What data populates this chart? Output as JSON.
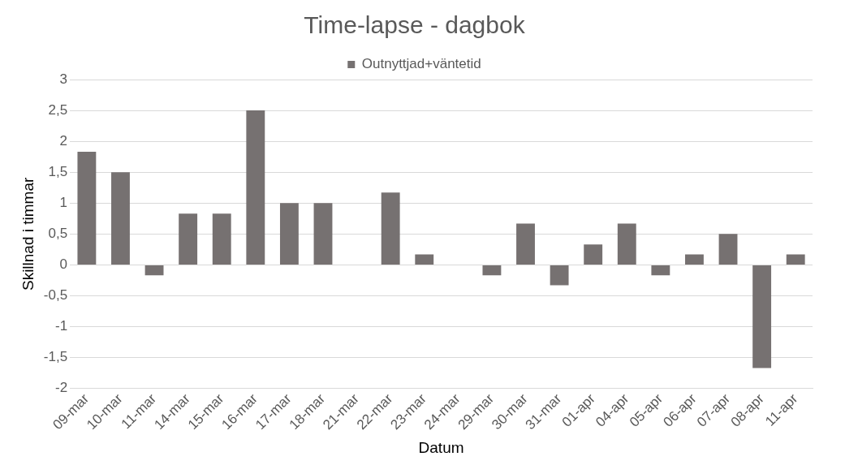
{
  "chart_data": {
    "type": "bar",
    "title": "Time-lapse - dagbok",
    "xlabel": "Datum",
    "ylabel": "Skillnad i timmar",
    "categories": [
      "09-mar",
      "10-mar",
      "11-mar",
      "14-mar",
      "15-mar",
      "16-mar",
      "17-mar",
      "18-mar",
      "21-mar",
      "22-mar",
      "23-mar",
      "24-mar",
      "29-mar",
      "30-mar",
      "31-mar",
      "01-apr",
      "04-apr",
      "05-apr",
      "06-apr",
      "07-apr",
      "08-apr",
      "11-apr"
    ],
    "series": [
      {
        "name": "Outnyttjad+väntetid",
        "color": "#767171",
        "values": [
          1.83,
          1.5,
          -0.17,
          0.83,
          0.83,
          2.5,
          1,
          1,
          0,
          1.17,
          0.17,
          0,
          -0.17,
          0.67,
          -0.33,
          0.33,
          0.67,
          -0.17,
          0.17,
          0.5,
          -1.67,
          0.17
        ]
      }
    ],
    "ylim": [
      -2,
      3
    ],
    "yticks": [
      -2,
      {
        "value": -1.5,
        "label": "-1,5"
      },
      -1,
      {
        "value": -0.5,
        "label": "-0,5"
      },
      0,
      {
        "value": 0.5,
        "label": "0,5"
      },
      1,
      {
        "value": 1.5,
        "label": "1,5"
      },
      2,
      {
        "value": 2.5,
        "label": "2,5"
      },
      3
    ],
    "grid": "y",
    "legend": "top"
  }
}
